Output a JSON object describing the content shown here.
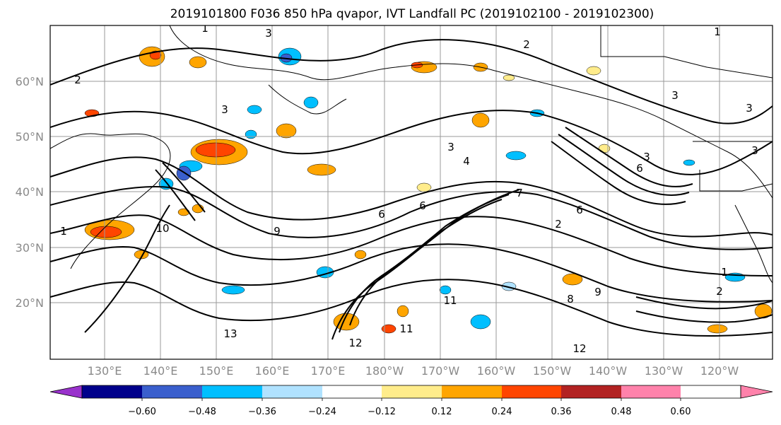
{
  "title": "2019101800 F036 850 hPa qvapor, IVT Landfall PC (2019102100 - 2019102300)",
  "lat_labels": [
    "60°N",
    "50°N",
    "40°N",
    "30°N",
    "20°N"
  ],
  "lon_labels": [
    "130°E",
    "140°E",
    "150°E",
    "160°E",
    "170°E",
    "180°W",
    "170°W",
    "160°W",
    "150°W",
    "140°W",
    "130°W",
    "120°W"
  ],
  "colorbar": {
    "colors": [
      "#9932cc",
      "#00008b",
      "#3a5fcd",
      "#00bfff",
      "#b0e2ff",
      "#ffffff",
      "#ffec8b",
      "#ffa500",
      "#ff4500",
      "#b22222",
      "#ff82ab"
    ],
    "tick_labels": [
      "−0.60",
      "−0.48",
      "−0.36",
      "−0.24",
      "−0.12",
      "0.12",
      "0.24",
      "0.36",
      "0.48",
      "0.60"
    ]
  },
  "contour_labels": [
    "1",
    "2",
    "3",
    "1",
    "2",
    "3",
    "3",
    "3",
    "3",
    "3",
    "6",
    "6",
    "7",
    "9",
    "10",
    "6",
    "6",
    "11",
    "11",
    "12",
    "13",
    "9",
    "8",
    "1",
    "2",
    "1",
    "3",
    "12",
    "4",
    "2"
  ]
}
